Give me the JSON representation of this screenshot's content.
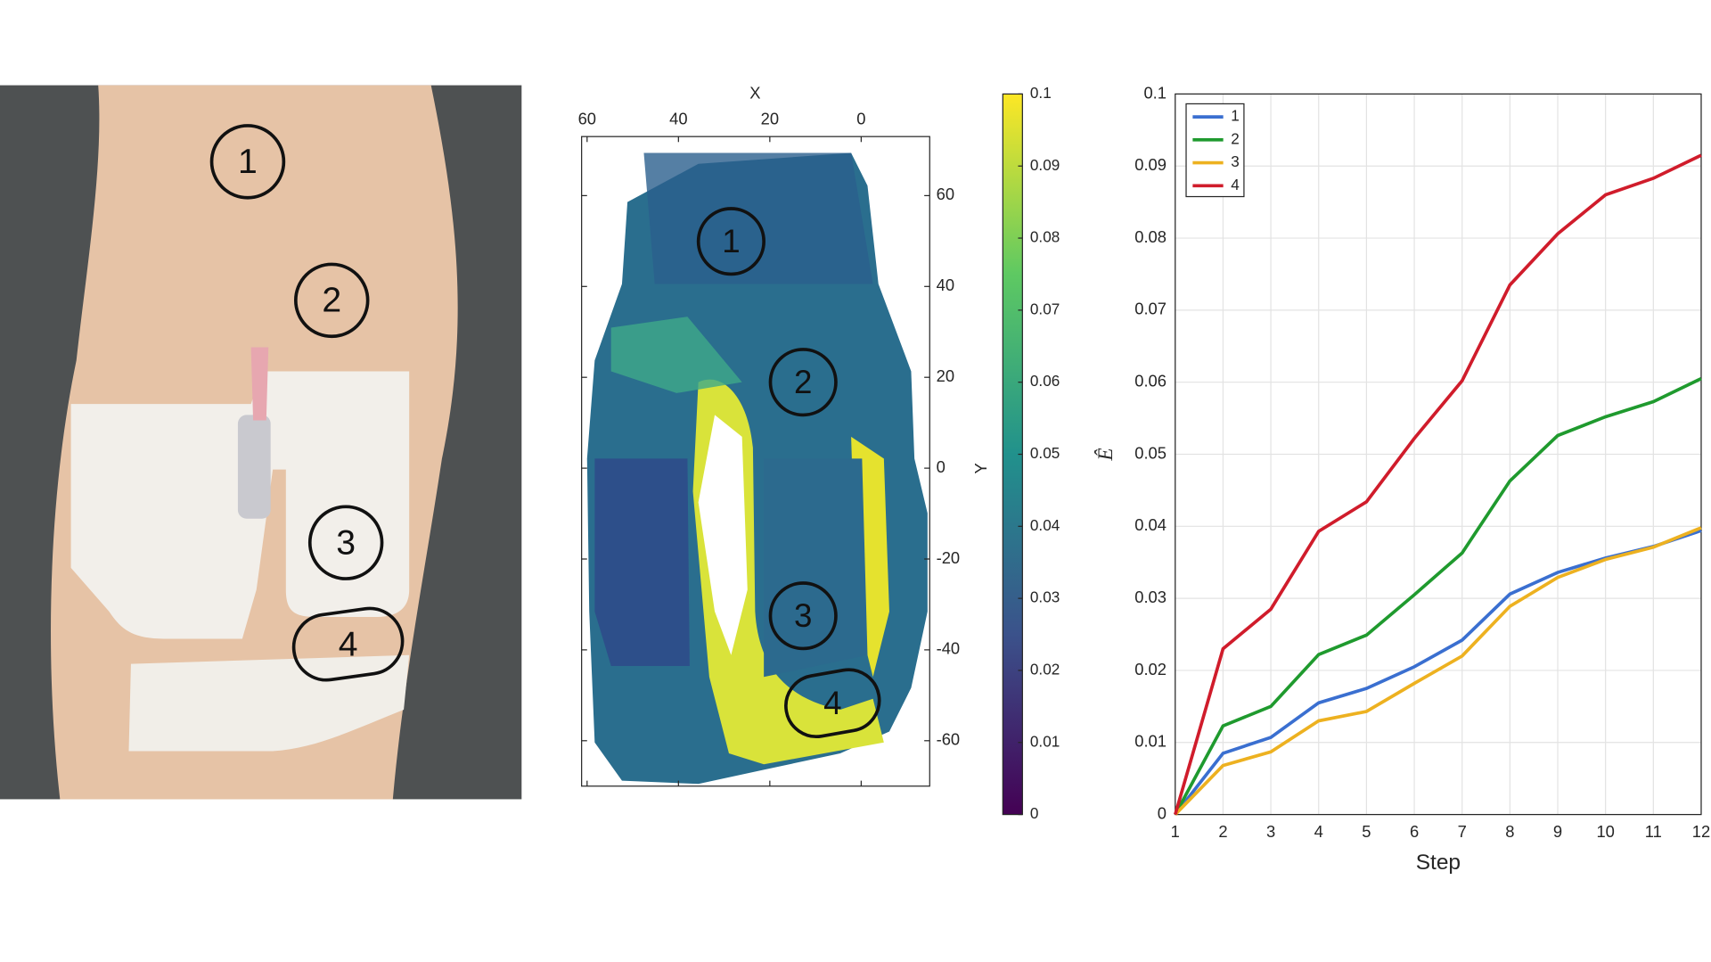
{
  "photo_labels": [
    "1",
    "2",
    "3",
    "4"
  ],
  "chart_data": [
    {
      "type": "heatmap",
      "xlabel": "X",
      "ylabel": "Y",
      "xlim": [
        61.2,
        -15
      ],
      "xticks": [
        60,
        40,
        20,
        0
      ],
      "ylim": [
        -70,
        73
      ],
      "yticks": [
        60,
        40,
        20,
        0,
        -20,
        -40,
        -60
      ],
      "clim": [
        0,
        0.1
      ],
      "cticks": [
        0,
        0.01,
        0.02,
        0.03,
        0.04,
        0.05,
        0.06,
        0.07,
        0.08,
        0.09,
        0.1
      ],
      "annotations": [
        "1",
        "2",
        "3",
        "4"
      ]
    },
    {
      "type": "line",
      "xlabel": "Step",
      "ylabel": "Ê",
      "grid": true,
      "legend": "top-left",
      "x": [
        1,
        2,
        3,
        4,
        5,
        6,
        7,
        8,
        9,
        10,
        11,
        12
      ],
      "xlim": [
        1,
        12
      ],
      "xticks": [
        1,
        2,
        3,
        4,
        5,
        6,
        7,
        8,
        9,
        10,
        11,
        12
      ],
      "ylim": [
        0,
        0.1
      ],
      "yticks": [
        0,
        0.01,
        0.02,
        0.03,
        0.04,
        0.05,
        0.06,
        0.07,
        0.08,
        0.09,
        0.1
      ],
      "series": [
        {
          "name": "1",
          "color": "#3a6fd0",
          "values": [
            0,
            0.0085,
            0.0107,
            0.0155,
            0.0175,
            0.0205,
            0.0242,
            0.0306,
            0.0336,
            0.0356,
            0.0372,
            0.0394
          ]
        },
        {
          "name": "2",
          "color": "#1f9a2e",
          "values": [
            0,
            0.0123,
            0.015,
            0.0222,
            0.0249,
            0.0305,
            0.0363,
            0.0463,
            0.0526,
            0.0552,
            0.0573,
            0.0605
          ]
        },
        {
          "name": "3",
          "color": "#edb120",
          "values": [
            0,
            0.0068,
            0.0087,
            0.013,
            0.0143,
            0.0182,
            0.022,
            0.0289,
            0.0329,
            0.0354,
            0.0371,
            0.0398
          ]
        },
        {
          "name": "4",
          "color": "#d01c2b",
          "values": [
            0,
            0.023,
            0.0285,
            0.0393,
            0.0434,
            0.0522,
            0.0602,
            0.0735,
            0.0806,
            0.086,
            0.0883,
            0.0915
          ]
        }
      ]
    }
  ]
}
